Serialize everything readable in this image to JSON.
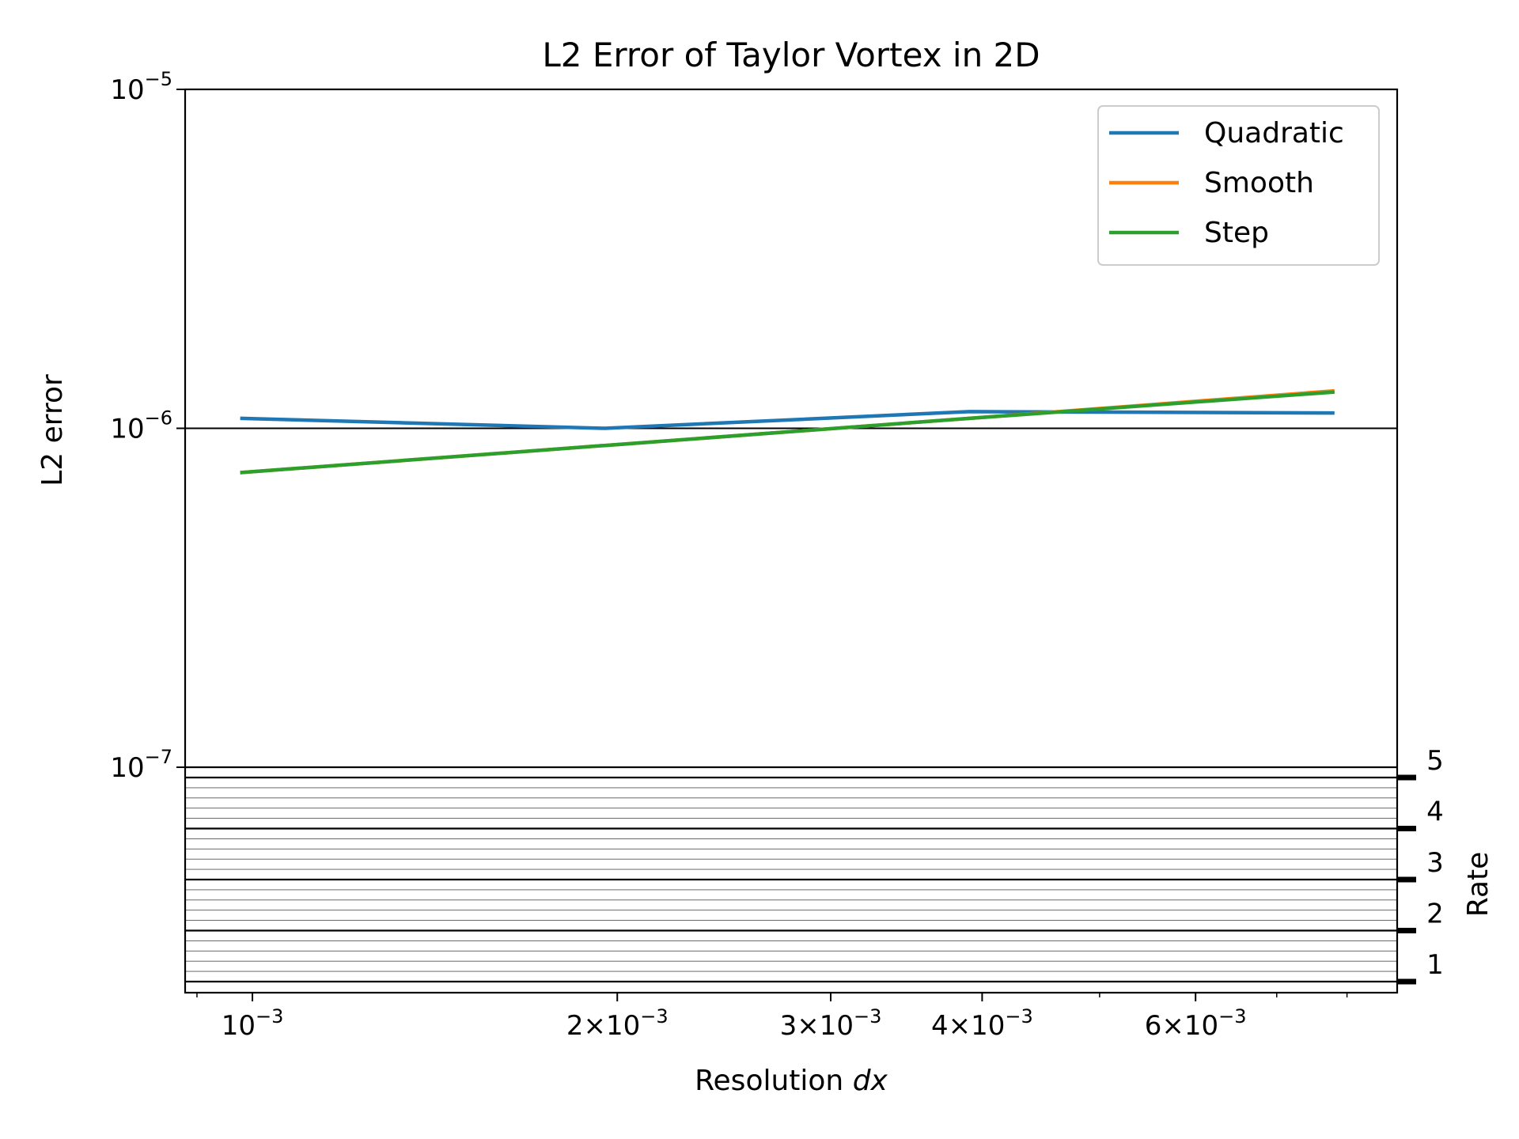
{
  "chart_data": {
    "type": "line",
    "title": "L2 Error of Taylor Vortex in 2D",
    "xlabel": "Resolution ",
    "xlabel_var": "dx",
    "ylabel": "L2 error",
    "ylabel_right": "Rate",
    "x_scale": "log",
    "y_scale": "log",
    "xlim": [
      0.00088,
      0.0088
    ],
    "ylim": [
      1e-07,
      1e-05
    ],
    "x_ticks": [
      {
        "value": 0.001,
        "mant": "",
        "exp": "−3"
      },
      {
        "value": 0.002,
        "mant": "2",
        "exp": "−3"
      },
      {
        "value": 0.003,
        "mant": "3",
        "exp": "−3"
      },
      {
        "value": 0.004,
        "mant": "4",
        "exp": "−3"
      },
      {
        "value": 0.006,
        "mant": "6",
        "exp": "−3"
      }
    ],
    "x_minor_ticks": [
      0.0009,
      0.005,
      0.007,
      0.008
    ],
    "y_ticks": [
      {
        "value": 1e-05,
        "exp": "−5"
      },
      {
        "value": 1e-06,
        "exp": "−6"
      },
      {
        "value": 1e-07,
        "exp": "−7"
      }
    ],
    "rate_axis": {
      "range": [
        0.75,
        5.15
      ],
      "ticks": [
        1,
        2,
        3,
        4,
        5
      ],
      "major_lines": [
        1,
        2,
        3,
        4,
        5
      ],
      "minor_step": 0.2
    },
    "hline": 1e-06,
    "grid": false,
    "legend": "top-right",
    "x": [
      0.000977,
      0.001953,
      0.003906,
      0.0078125
    ],
    "series": [
      {
        "name": "Quadratic",
        "color": "#1f77b4",
        "values": [
          1.07e-06,
          1e-06,
          1.12e-06,
          1.11e-06
        ]
      },
      {
        "name": "Smooth",
        "color": "#ff7f0e",
        "values": [
          7.4e-07,
          8.9e-07,
          1.07e-06,
          1.29e-06
        ]
      },
      {
        "name": "Step",
        "color": "#2ca02c",
        "values": [
          7.4e-07,
          8.9e-07,
          1.07e-06,
          1.28e-06
        ]
      }
    ]
  }
}
